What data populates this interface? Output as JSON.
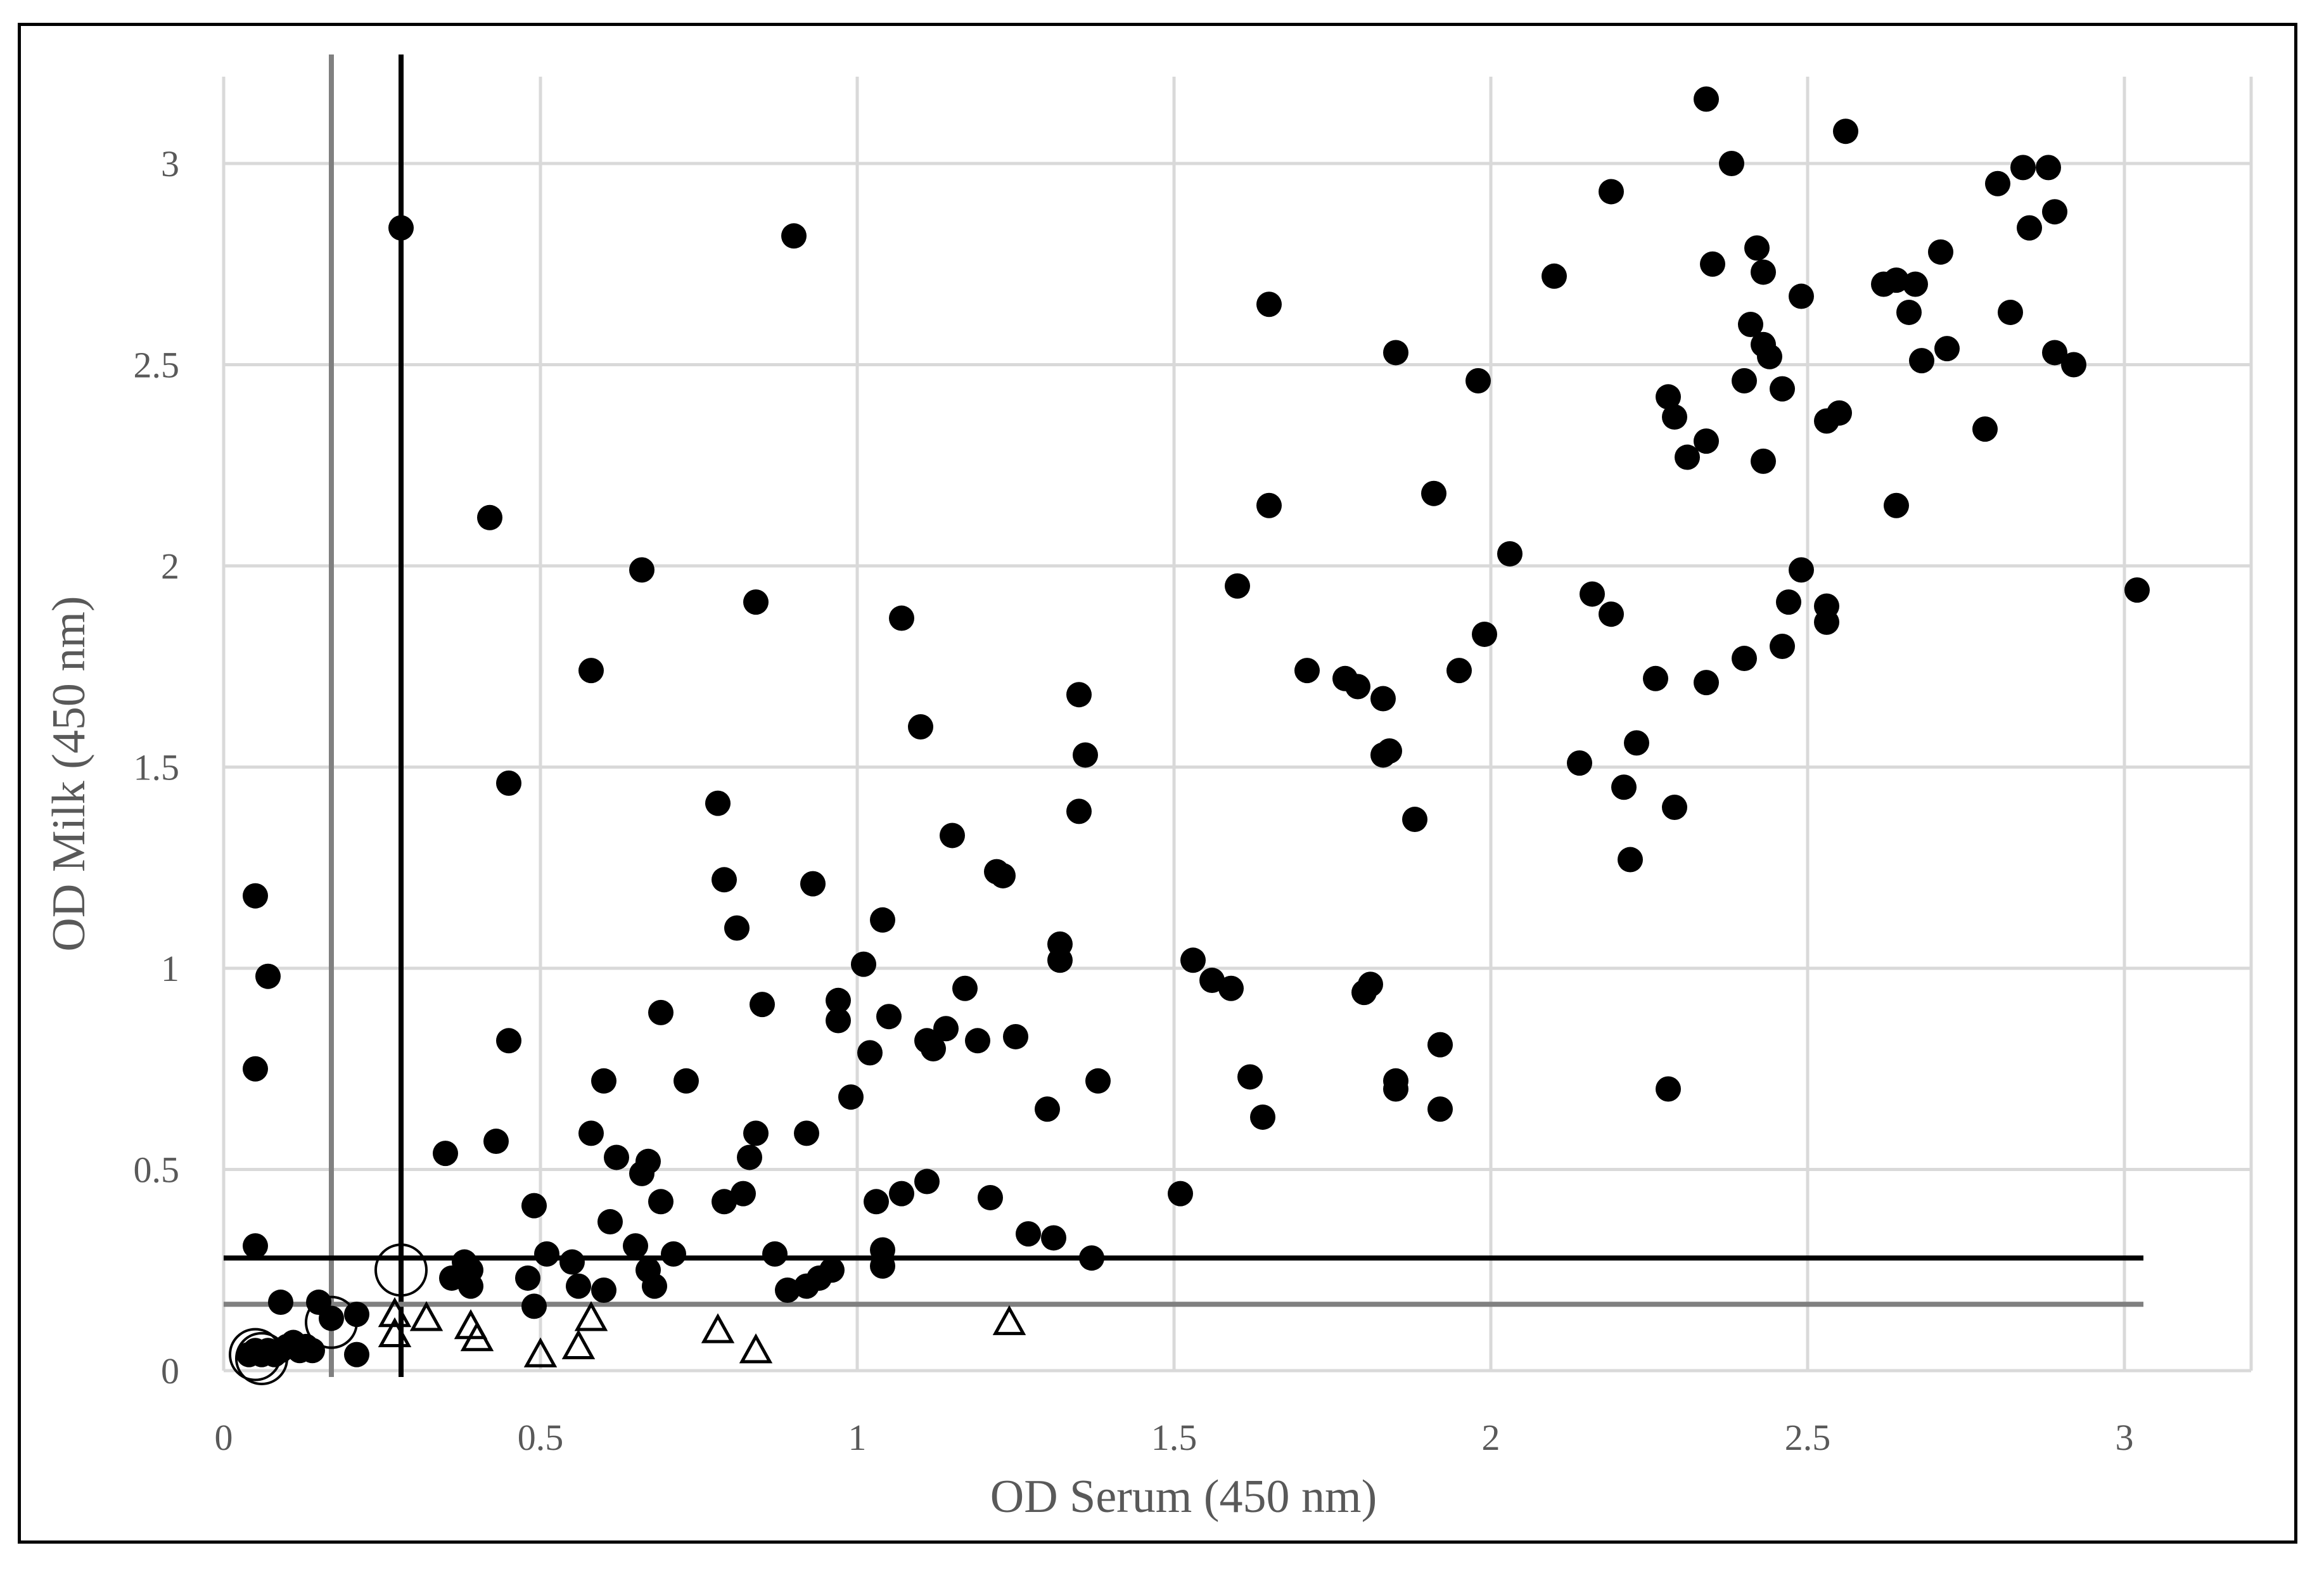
{
  "chart_data": {
    "type": "scatter",
    "xlabel": "OD Serum (450 nm)",
    "ylabel": "OD Milk (450 nm)",
    "xlim": [
      0,
      3.2
    ],
    "ylim": [
      0,
      3.2
    ],
    "xticks": [
      0,
      0.5,
      1,
      1.5,
      2,
      2.5,
      3
    ],
    "yticks": [
      0,
      0.5,
      1,
      1.5,
      2,
      2.5,
      3
    ],
    "x_tick_labels": [
      "0",
      "0.5",
      "1",
      "1.5",
      "2",
      "2.5",
      "3"
    ],
    "y_tick_labels": [
      "0",
      "0.5",
      "1",
      "1.5",
      "2",
      "2.5",
      "3"
    ],
    "grid": true,
    "legend": "none",
    "colors": {
      "points": "#000000",
      "grid": "#d9d9d9",
      "cutoff_black": "#000000",
      "cutoff_gray": "#808080"
    },
    "reference_lines": [
      {
        "orientation": "vertical",
        "value": 0.28,
        "color": "#000000"
      },
      {
        "orientation": "vertical",
        "value": 0.17,
        "color": "#808080"
      },
      {
        "orientation": "horizontal",
        "value": 0.28,
        "color": "#000000"
      },
      {
        "orientation": "horizontal",
        "value": 0.165,
        "color": "#808080"
      }
    ],
    "series": [
      {
        "marker": "filled-circle",
        "points": [
          [
            0.05,
            1.18
          ],
          [
            0.05,
            0.75
          ],
          [
            0.07,
            0.98
          ],
          [
            0.05,
            0.31
          ],
          [
            0.09,
            0.17
          ],
          [
            0.15,
            0.17
          ],
          [
            0.17,
            0.13
          ],
          [
            0.21,
            0.14
          ],
          [
            0.21,
            0.04
          ],
          [
            0.28,
            2.84
          ],
          [
            0.42,
            2.12
          ],
          [
            0.45,
            1.46
          ],
          [
            0.45,
            0.82
          ],
          [
            0.43,
            0.57
          ],
          [
            0.35,
            0.54
          ],
          [
            0.38,
            0.27
          ],
          [
            0.39,
            0.25
          ],
          [
            0.39,
            0.21
          ],
          [
            0.36,
            0.23
          ],
          [
            0.49,
            0.41
          ],
          [
            0.48,
            0.23
          ],
          [
            0.51,
            0.29
          ],
          [
            0.49,
            0.16
          ],
          [
            0.55,
            0.27
          ],
          [
            0.56,
            0.21
          ],
          [
            0.58,
            1.74
          ],
          [
            0.58,
            0.59
          ],
          [
            0.6,
            0.72
          ],
          [
            0.61,
            0.37
          ],
          [
            0.6,
            0.2
          ],
          [
            0.62,
            0.53
          ],
          [
            0.65,
            0.31
          ],
          [
            0.66,
            0.49
          ],
          [
            0.67,
            0.52
          ],
          [
            0.67,
            0.25
          ],
          [
            0.68,
            0.21
          ],
          [
            0.66,
            1.99
          ],
          [
            0.69,
            0.89
          ],
          [
            0.69,
            0.42
          ],
          [
            0.71,
            0.29
          ],
          [
            0.73,
            0.72
          ],
          [
            0.78,
            1.41
          ],
          [
            0.79,
            1.22
          ],
          [
            0.81,
            1.1
          ],
          [
            0.79,
            0.42
          ],
          [
            0.82,
            0.44
          ],
          [
            0.83,
            0.53
          ],
          [
            0.84,
            1.91
          ],
          [
            0.84,
            0.59
          ],
          [
            0.85,
            0.91
          ],
          [
            0.87,
            0.29
          ],
          [
            0.9,
            2.82
          ],
          [
            0.89,
            0.2
          ],
          [
            0.92,
            0.21
          ],
          [
            0.92,
            0.59
          ],
          [
            0.93,
            1.21
          ],
          [
            0.94,
            0.23
          ],
          [
            0.96,
            0.25
          ],
          [
            0.97,
            0.92
          ],
          [
            0.97,
            0.87
          ],
          [
            0.99,
            0.68
          ],
          [
            1.01,
            1.01
          ],
          [
            1.02,
            0.79
          ],
          [
            1.03,
            0.42
          ],
          [
            1.04,
            1.12
          ],
          [
            1.04,
            0.3
          ],
          [
            1.04,
            0.26
          ],
          [
            1.05,
            0.88
          ],
          [
            1.07,
            1.87
          ],
          [
            1.07,
            0.44
          ],
          [
            1.1,
            1.6
          ],
          [
            1.11,
            0.82
          ],
          [
            1.12,
            0.8
          ],
          [
            1.11,
            0.47
          ],
          [
            1.14,
            0.85
          ],
          [
            1.15,
            1.33
          ],
          [
            1.17,
            0.95
          ],
          [
            1.19,
            0.82
          ],
          [
            1.21,
            0.43
          ],
          [
            1.22,
            1.24
          ],
          [
            1.23,
            1.23
          ],
          [
            1.25,
            0.83
          ],
          [
            1.27,
            0.34
          ],
          [
            1.31,
            0.33
          ],
          [
            1.3,
            0.65
          ],
          [
            1.32,
            1.06
          ],
          [
            1.32,
            1.02
          ],
          [
            1.35,
            1.68
          ],
          [
            1.35,
            1.39
          ],
          [
            1.36,
            1.53
          ],
          [
            1.38,
            0.72
          ],
          [
            1.37,
            0.28
          ],
          [
            1.51,
            0.44
          ],
          [
            1.53,
            1.02
          ],
          [
            1.56,
            0.97
          ],
          [
            1.59,
            0.95
          ],
          [
            1.6,
            1.95
          ],
          [
            1.62,
            0.73
          ],
          [
            1.64,
            0.63
          ],
          [
            1.65,
            2.65
          ],
          [
            1.65,
            2.15
          ],
          [
            1.71,
            1.74
          ],
          [
            1.77,
            1.72
          ],
          [
            1.79,
            1.7
          ],
          [
            1.8,
            0.94
          ],
          [
            1.81,
            0.96
          ],
          [
            1.83,
            1.67
          ],
          [
            1.83,
            1.53
          ],
          [
            1.84,
            1.54
          ],
          [
            1.85,
            2.53
          ],
          [
            1.85,
            0.72
          ],
          [
            1.85,
            0.7
          ],
          [
            1.88,
            1.37
          ],
          [
            1.91,
            2.18
          ],
          [
            1.92,
            0.81
          ],
          [
            1.92,
            0.65
          ],
          [
            1.95,
            1.74
          ],
          [
            1.98,
            2.46
          ],
          [
            1.99,
            1.83
          ],
          [
            2.03,
            2.03
          ],
          [
            2.1,
            2.72
          ],
          [
            2.14,
            1.51
          ],
          [
            2.16,
            1.93
          ],
          [
            2.19,
            2.93
          ],
          [
            2.19,
            1.88
          ],
          [
            2.21,
            1.45
          ],
          [
            2.22,
            1.27
          ],
          [
            2.23,
            1.56
          ],
          [
            2.26,
            1.72
          ],
          [
            2.28,
            2.42
          ],
          [
            2.29,
            2.37
          ],
          [
            2.29,
            1.4
          ],
          [
            2.28,
            0.7
          ],
          [
            2.31,
            2.27
          ],
          [
            2.34,
            3.16
          ],
          [
            2.34,
            2.31
          ],
          [
            2.35,
            2.75
          ],
          [
            2.34,
            1.71
          ],
          [
            2.38,
            3.0
          ],
          [
            2.4,
            2.46
          ],
          [
            2.4,
            1.77
          ],
          [
            2.41,
            2.6
          ],
          [
            2.42,
            2.79
          ],
          [
            2.43,
            2.73
          ],
          [
            2.43,
            2.55
          ],
          [
            2.43,
            2.26
          ],
          [
            2.44,
            2.52
          ],
          [
            2.46,
            2.44
          ],
          [
            2.46,
            1.8
          ],
          [
            2.47,
            1.91
          ],
          [
            2.49,
            2.67
          ],
          [
            2.49,
            1.99
          ],
          [
            2.53,
            1.9
          ],
          [
            2.53,
            1.86
          ],
          [
            2.53,
            2.36
          ],
          [
            2.55,
            2.38
          ],
          [
            2.56,
            3.08
          ],
          [
            2.62,
            2.7
          ],
          [
            2.64,
            2.71
          ],
          [
            2.64,
            2.15
          ],
          [
            2.66,
            2.63
          ],
          [
            2.67,
            2.7
          ],
          [
            2.68,
            2.51
          ],
          [
            2.71,
            2.78
          ],
          [
            2.72,
            2.54
          ],
          [
            2.78,
            2.34
          ],
          [
            2.8,
            2.95
          ],
          [
            2.82,
            2.63
          ],
          [
            2.84,
            2.99
          ],
          [
            2.85,
            2.84
          ],
          [
            2.88,
            2.99
          ],
          [
            2.89,
            2.88
          ],
          [
            2.89,
            2.53
          ],
          [
            2.92,
            2.5
          ],
          [
            3.02,
            1.94
          ],
          [
            0.04,
            0.04
          ],
          [
            0.05,
            0.05
          ],
          [
            0.06,
            0.04
          ],
          [
            0.07,
            0.05
          ],
          [
            0.08,
            0.04
          ],
          [
            0.09,
            0.05
          ],
          [
            0.1,
            0.06
          ],
          [
            0.11,
            0.07
          ],
          [
            0.12,
            0.05
          ],
          [
            0.13,
            0.06
          ],
          [
            0.14,
            0.05
          ]
        ]
      },
      {
        "marker": "open-triangle",
        "points": [
          [
            0.27,
            0.09
          ],
          [
            0.27,
            0.14
          ],
          [
            0.32,
            0.13
          ],
          [
            0.39,
            0.11
          ],
          [
            0.4,
            0.08
          ],
          [
            0.5,
            0.04
          ],
          [
            0.56,
            0.06
          ],
          [
            0.58,
            0.13
          ],
          [
            0.78,
            0.1
          ],
          [
            0.84,
            0.05
          ],
          [
            1.24,
            0.12
          ]
        ]
      },
      {
        "marker": "open-circle",
        "points": [
          [
            0.28,
            0.25
          ],
          [
            0.17,
            0.12
          ],
          [
            0.05,
            0.04
          ],
          [
            0.06,
            0.03
          ]
        ]
      }
    ]
  }
}
